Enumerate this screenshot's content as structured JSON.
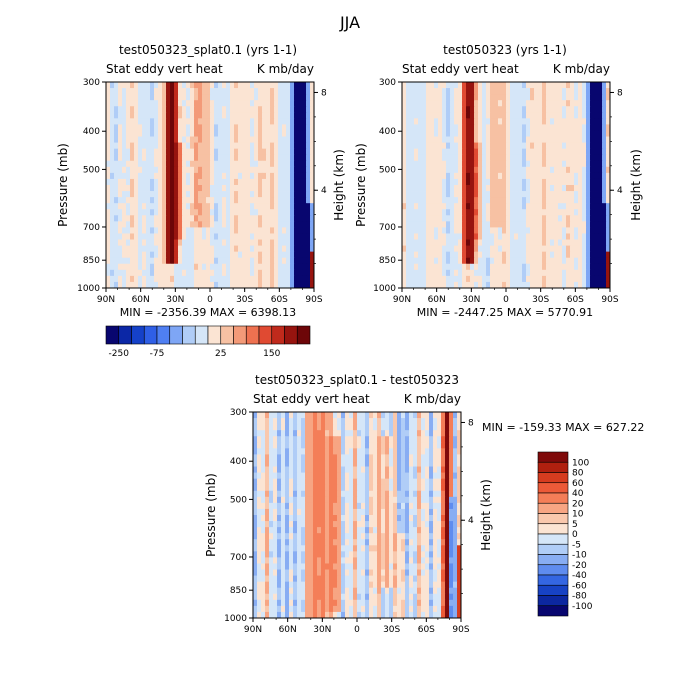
{
  "page_title": "JJA",
  "chart_data": [
    {
      "type": "heatmap",
      "title": "test050323_splat0.1 (yrs 1-1)",
      "subtitle_left": "Stat eddy vert heat",
      "subtitle_right": "K mb/day",
      "ylabel": "Pressure (mb)",
      "ylabel_right": "Height (km)",
      "x_ticks": [
        "90N",
        "60N",
        "30N",
        "0",
        "30S",
        "60S",
        "90S"
      ],
      "y_ticks": [
        "300",
        "400",
        "500",
        "700",
        "850",
        "1000"
      ],
      "y_right_ticks": [
        "8",
        "4"
      ],
      "ylim": [
        1000,
        300
      ],
      "xlim": [
        90,
        -90
      ],
      "stats_text": "MIN = -2356.39   MAX = 6398.13",
      "min": -2356.39,
      "max": 6398.13,
      "features": [
        {
          "lat": 33,
          "width": 4,
          "pmin": 300,
          "pmax": 880,
          "value": 300
        },
        {
          "lat": 27,
          "width": 3,
          "pmin": 420,
          "pmax": 750,
          "value": 60
        },
        {
          "lat": -78,
          "width": 4,
          "pmin": 300,
          "pmax": 1000,
          "value": -600
        },
        {
          "lat": -84,
          "width": 3,
          "pmin": 600,
          "pmax": 990,
          "value": -300
        },
        {
          "lat": -88,
          "width": 2,
          "pmin": 820,
          "pmax": 1000,
          "value": 250
        },
        {
          "lat": 10,
          "width": 8,
          "pmin": 300,
          "pmax": 700,
          "value": 20
        },
        {
          "lat": -40,
          "width": 10,
          "pmin": 300,
          "pmax": 1000,
          "value": 10
        }
      ]
    },
    {
      "type": "heatmap",
      "title": "test050323 (yrs 1-1)",
      "subtitle_left": "Stat eddy vert heat",
      "subtitle_right": "K mb/day",
      "ylabel": "Pressure (mb)",
      "ylabel_right": "Height (km)",
      "x_ticks": [
        "90N",
        "60N",
        "30N",
        "0",
        "30S",
        "60S",
        "90S"
      ],
      "y_ticks": [
        "300",
        "400",
        "500",
        "700",
        "850",
        "1000"
      ],
      "y_right_ticks": [
        "8",
        "4"
      ],
      "ylim": [
        1000,
        300
      ],
      "xlim": [
        90,
        -90
      ],
      "stats_text": "MIN = -2447.25   MAX = 5770.91",
      "min": -2447.25,
      "max": 5770.91,
      "features": [
        {
          "lat": 32,
          "width": 4,
          "pmin": 300,
          "pmax": 880,
          "value": 250
        },
        {
          "lat": 26,
          "width": 3,
          "pmin": 420,
          "pmax": 750,
          "value": 50
        },
        {
          "lat": -78,
          "width": 4,
          "pmin": 300,
          "pmax": 1000,
          "value": -600
        },
        {
          "lat": -84,
          "width": 3,
          "pmin": 600,
          "pmax": 990,
          "value": -300
        },
        {
          "lat": -88,
          "width": 2,
          "pmin": 820,
          "pmax": 1000,
          "value": 250
        },
        {
          "lat": 10,
          "width": 8,
          "pmin": 300,
          "pmax": 700,
          "value": 15
        },
        {
          "lat": -40,
          "width": 10,
          "pmin": 300,
          "pmax": 1000,
          "value": 10
        }
      ]
    },
    {
      "type": "heatmap",
      "title": "test050323_splat0.1 - test050323",
      "subtitle_left": "Stat eddy vert heat",
      "subtitle_right": "K mb/day",
      "ylabel": "Pressure (mb)",
      "ylabel_right": "Height (km)",
      "x_ticks": [
        "90N",
        "60N",
        "30N",
        "0",
        "30S",
        "60S",
        "90S"
      ],
      "y_ticks": [
        "300",
        "400",
        "500",
        "700",
        "850",
        "1000"
      ],
      "y_right_ticks": [
        "8",
        "4"
      ],
      "ylim": [
        1000,
        300
      ],
      "xlim": [
        90,
        -90
      ],
      "stats_text": "MIN = -159.33   MAX = 627.22",
      "min": -159.33,
      "max": 627.22,
      "features": [
        {
          "lat": 33,
          "width": 8,
          "pmin": 300,
          "pmax": 1000,
          "value": 30
        },
        {
          "lat": 20,
          "width": 6,
          "pmin": 350,
          "pmax": 950,
          "value": 20
        },
        {
          "lat": 60,
          "width": 5,
          "pmin": 300,
          "pmax": 1000,
          "value": -12
        },
        {
          "lat": -25,
          "width": 6,
          "pmin": 350,
          "pmax": 850,
          "value": 15
        },
        {
          "lat": -38,
          "width": 4,
          "pmin": 300,
          "pmax": 600,
          "value": -15
        },
        {
          "lat": -78,
          "width": 3,
          "pmin": 300,
          "pmax": 1000,
          "value": 120
        },
        {
          "lat": -82,
          "width": 2,
          "pmin": 500,
          "pmax": 1000,
          "value": -60
        },
        {
          "lat": -88,
          "width": 2,
          "pmin": 650,
          "pmax": 1000,
          "value": 60
        }
      ]
    }
  ],
  "colorbar_top": {
    "labels": [
      "-250",
      "-75",
      "25",
      "150"
    ],
    "colors": [
      "#08066f",
      "#0b27a6",
      "#1541c9",
      "#2f5fe6",
      "#4f7ff2",
      "#7ea6f5",
      "#b0cdf7",
      "#d5e6f8",
      "#fbe4d3",
      "#f7c1a3",
      "#f39a78",
      "#ee7150",
      "#e04a32",
      "#c02a1c",
      "#97140f",
      "#6d0608"
    ]
  },
  "colorbar_diff": {
    "labels": [
      "100",
      "80",
      "60",
      "40",
      "20",
      "10",
      "5",
      "0",
      "-5",
      "-10",
      "-20",
      "-40",
      "-60",
      "-80",
      "-100"
    ],
    "colors": [
      "#7f0a0a",
      "#b0200f",
      "#d63c1f",
      "#ec5a38",
      "#f47e58",
      "#f7a583",
      "#f9c8ad",
      "#fbe4d3",
      "#d5e6f8",
      "#b0cdf7",
      "#88adf3",
      "#5f8cef",
      "#3466e2",
      "#1742c4",
      "#0c27a0",
      "#08066f"
    ]
  }
}
